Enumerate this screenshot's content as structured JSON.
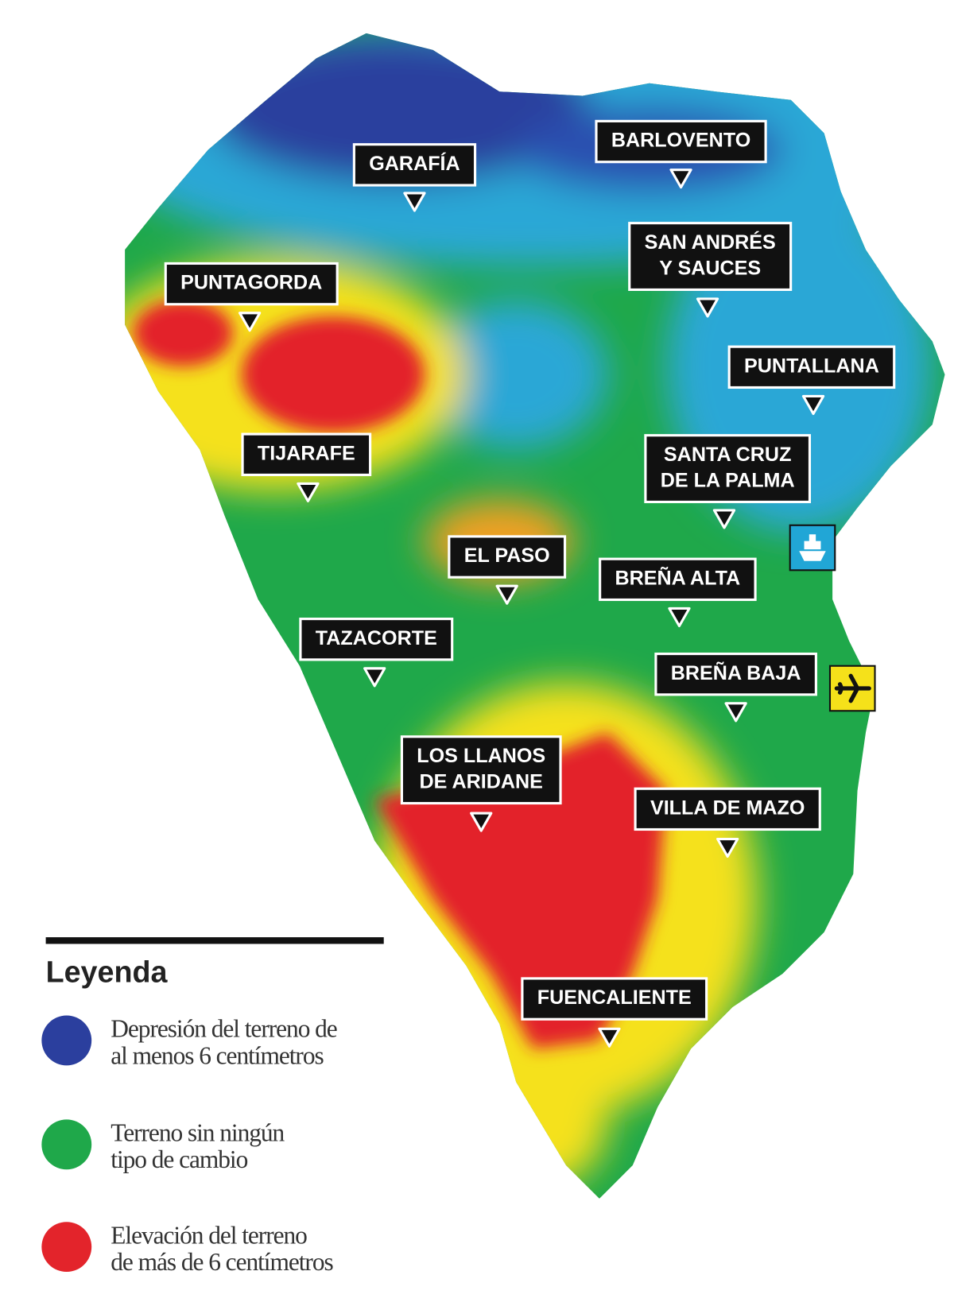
{
  "towns": [
    {
      "lines": [
        "GARAFÍA"
      ]
    },
    {
      "lines": [
        "BARLOVENTO"
      ]
    },
    {
      "lines": [
        "SAN ANDRÉS",
        "Y SAUCES"
      ]
    },
    {
      "lines": [
        "PUNTAGORDA"
      ]
    },
    {
      "lines": [
        "PUNTALLANA"
      ]
    },
    {
      "lines": [
        "TIJARAFE"
      ]
    },
    {
      "lines": [
        "SANTA CRUZ",
        "DE LA PALMA"
      ]
    },
    {
      "lines": [
        "EL PASO"
      ]
    },
    {
      "lines": [
        "BREÑA ALTA"
      ]
    },
    {
      "lines": [
        "TAZACORTE"
      ]
    },
    {
      "lines": [
        "BREÑA BAJA"
      ]
    },
    {
      "lines": [
        "LOS LLANOS",
        "DE ARIDANE"
      ]
    },
    {
      "lines": [
        "VILLA DE MAZO"
      ]
    },
    {
      "lines": [
        "FUENCALIENTE"
      ]
    }
  ],
  "legend": {
    "title": "Leyenda",
    "items": [
      {
        "color": "#2b3f9e",
        "lines": [
          "Depresión del terreno de",
          "al menos 6 centímetros"
        ]
      },
      {
        "color": "#1fa84a",
        "lines": [
          "Terreno sin ningún",
          "tipo de cambio"
        ]
      },
      {
        "color": "#e3242b",
        "lines": [
          "Elevación del terreno",
          "de más de 6 centímetros"
        ]
      }
    ]
  }
}
